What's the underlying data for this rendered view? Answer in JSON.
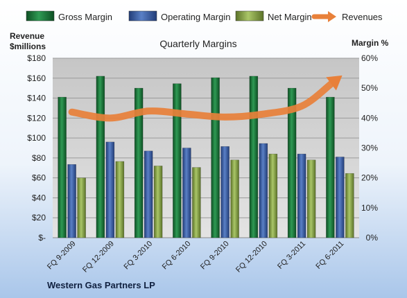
{
  "chart_data": {
    "type": "bar",
    "title": "Quarterly Margins",
    "footer": "Western Gas Partners LP",
    "categories": [
      "FQ 9-2009",
      "FQ 12-2009",
      "FQ 3-2010",
      "FQ 6-2010",
      "FQ 9-2010",
      "FQ 12-2010",
      "FQ 3-2011",
      "FQ 6-2011"
    ],
    "y_left": {
      "label_line1": "Revenue",
      "label_line2": "$millions",
      "range": [
        0,
        180
      ],
      "ticks": [
        "$-",
        "$20",
        "$40",
        "$60",
        "$80",
        "$100",
        "$120",
        "$140",
        "$160",
        "$180"
      ]
    },
    "y_right": {
      "label": "Margin %",
      "range": [
        0,
        0.6
      ],
      "ticks": [
        "0%",
        "10%",
        "20%",
        "30%",
        "40%",
        "50%",
        "60%"
      ]
    },
    "series": [
      {
        "name": "Gross Margin",
        "axis": "right",
        "color": "#1e7a3c",
        "values": [
          0.47,
          0.54,
          0.5,
          0.515,
          0.535,
          0.54,
          0.5,
          0.47
        ]
      },
      {
        "name": "Operating Margin",
        "axis": "right",
        "color": "#3c5fa8",
        "values": [
          0.245,
          0.32,
          0.29,
          0.3,
          0.305,
          0.315,
          0.28,
          0.27
        ]
      },
      {
        "name": "Net Margin",
        "axis": "right",
        "color": "#8faa4a",
        "values": [
          0.2,
          0.255,
          0.24,
          0.235,
          0.26,
          0.28,
          0.26,
          0.215
        ]
      },
      {
        "name": "Revenues",
        "axis": "left",
        "type": "line",
        "color": "#e8803a",
        "values": [
          126,
          120,
          127,
          124,
          121,
          124,
          132,
          161
        ]
      }
    ],
    "legend": "top",
    "grid": true
  }
}
